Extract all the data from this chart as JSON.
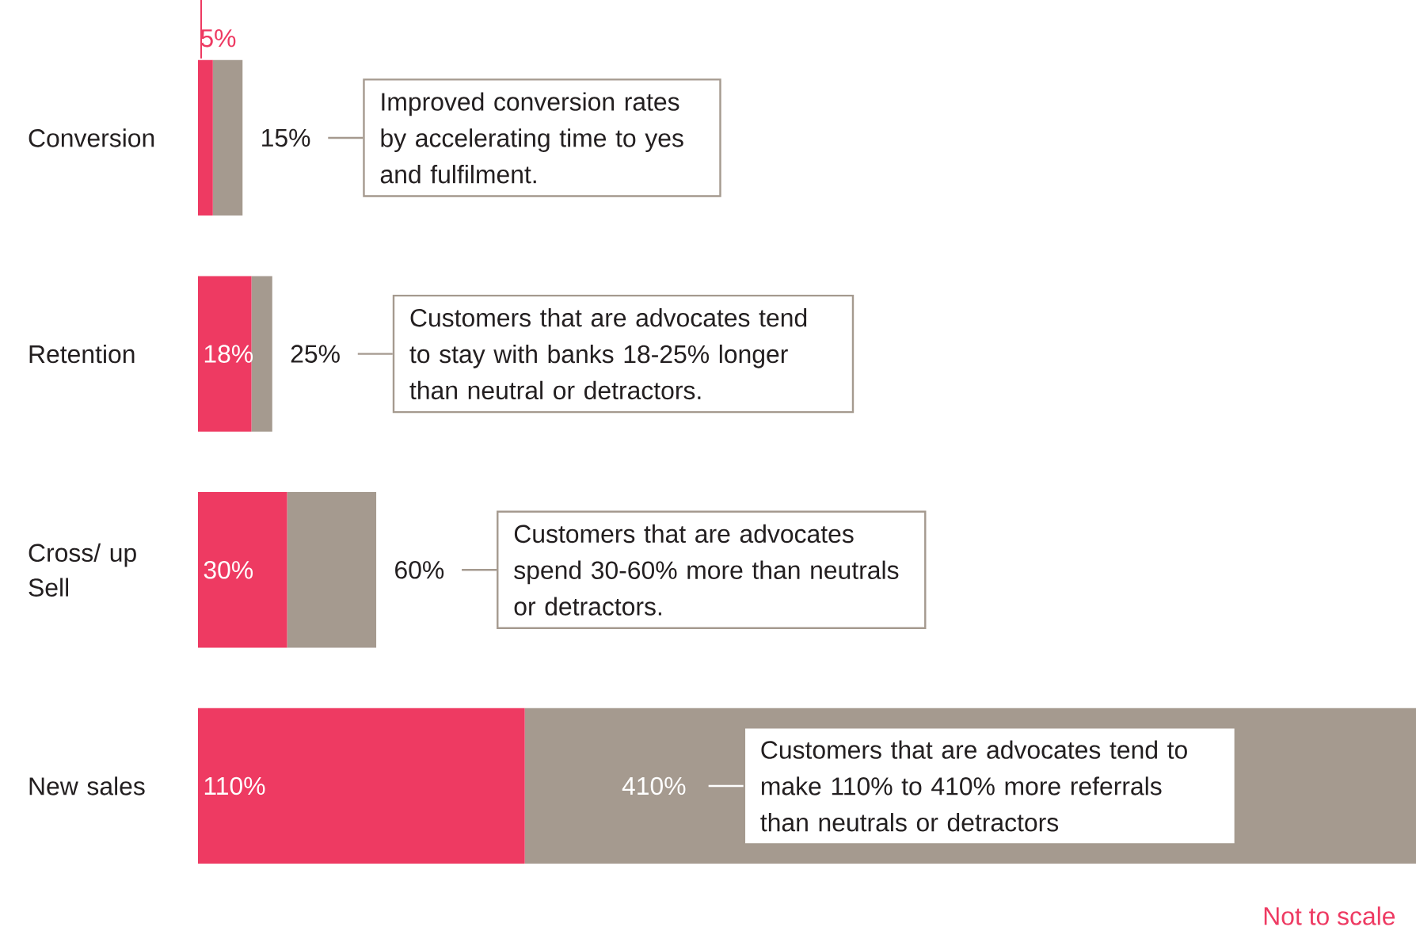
{
  "chart_data": {
    "type": "bar",
    "orientation": "horizontal",
    "stacked": true,
    "categories": [
      "Conversion",
      "Retention",
      "Cross/ up Sell",
      "New sales"
    ],
    "xlim": [
      0,
      410
    ],
    "tick_labels": "y",
    "series": [
      {
        "color": "#ee3a62",
        "values": [
          5,
          18,
          30,
          110
        ],
        "value_labels": [
          "5%",
          "18%",
          "30%",
          "110%"
        ]
      },
      {
        "color": "#a59a8f",
        "values": [
          10,
          7,
          30,
          300
        ]
      }
    ],
    "totals": [
      "15%",
      "25%",
      "60%",
      "410%"
    ],
    "annotations": [
      "Improved conversion rates by accelerating time to yes and fulfilment.",
      "Customers that are advocates tend to stay with banks 18-25% longer than neutral or detractors.",
      "Customers that are advocates spend 30-60% more than neutrals or detractors.",
      "Customers that are advocates tend to make 110% to 410% more referrals than neutrals or detractors",
      "Not to scale"
    ]
  }
}
